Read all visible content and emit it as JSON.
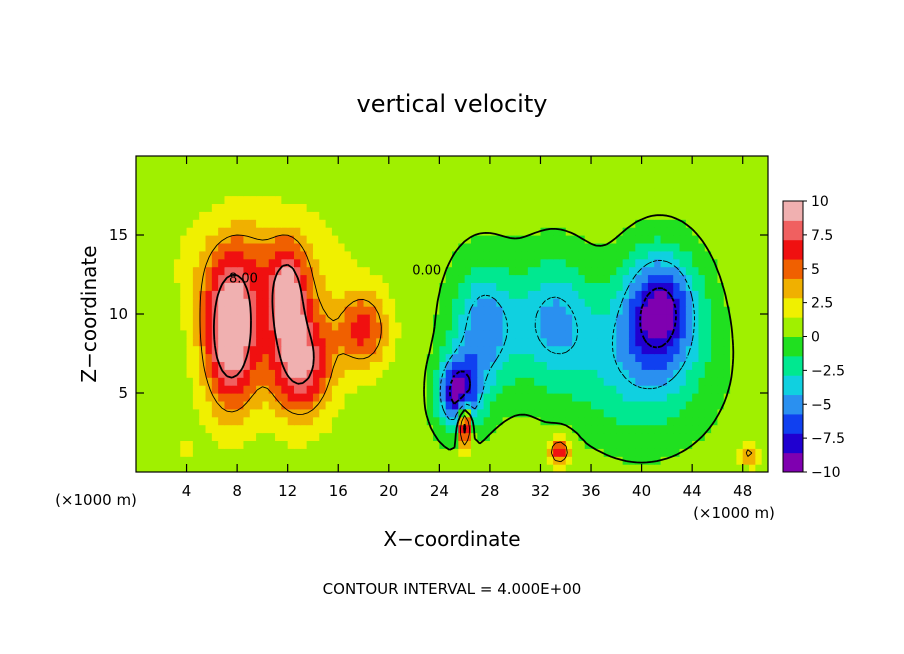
{
  "chart_data": {
    "type": "heatmap",
    "title": "vertical velocity",
    "xlabel": "X−coordinate",
    "ylabel": "Z−coordinate",
    "x_unit": "(×1000 m)",
    "y_unit": "(×1000 m)",
    "footer": "CONTOUR INTERVAL = 4.000E+00",
    "xlim": [
      0,
      50
    ],
    "ylim": [
      0,
      20
    ],
    "x_ticks": [
      4,
      8,
      12,
      16,
      20,
      24,
      28,
      32,
      36,
      40,
      44,
      48
    ],
    "x_tick_labels": [
      "4",
      "8",
      "12",
      "16",
      "20",
      "24",
      "28",
      "32",
      "36",
      "40",
      "44",
      "48"
    ],
    "y_ticks": [
      5,
      10,
      15
    ],
    "y_tick_labels": [
      "5",
      "10",
      "15"
    ],
    "contour_labels": [
      {
        "text": "8.00",
        "x": 8.5,
        "y": 12.0
      },
      {
        "text": "0.00",
        "x": 23.0,
        "y": 12.5
      }
    ],
    "colorbar": {
      "range": [
        -10,
        10
      ],
      "ticks": [
        10,
        7.5,
        5,
        2.5,
        0,
        -2.5,
        -5,
        -7.5,
        -10
      ],
      "tick_labels": [
        "10",
        "7.5",
        "5",
        "2.5",
        "0",
        "−2.5",
        "−5",
        "−7.5",
        "−10"
      ],
      "colors": [
        "#7f00b0",
        "#2000d0",
        "#1040f0",
        "#2a90f0",
        "#10d0e0",
        "#00e890",
        "#20e020",
        "#a0f000",
        "#f0f000",
        "#f0b000",
        "#f06000",
        "#f01010",
        "#f06060",
        "#f0b0b0"
      ]
    },
    "features": [
      {
        "x": 7.5,
        "y": 8.5,
        "value": 10,
        "spread_x": 2.2,
        "spread_y": 4.5
      },
      {
        "x": 13.0,
        "y": 7.0,
        "value": 8.5,
        "spread_x": 2.5,
        "spread_y": 3.5
      },
      {
        "x": 12.0,
        "y": 11.0,
        "value": 6.5,
        "spread_x": 1.4,
        "spread_y": 3.0
      },
      {
        "x": 18.0,
        "y": 9.0,
        "value": 5.5,
        "spread_x": 2.0,
        "spread_y": 2.5
      },
      {
        "x": 10.0,
        "y": 13.0,
        "value": 3.5,
        "spread_x": 5.5,
        "spread_y": 3.5
      },
      {
        "x": 25.5,
        "y": 5.0,
        "value": -9.5,
        "spread_x": 1.6,
        "spread_y": 2.2
      },
      {
        "x": 26.0,
        "y": 3.0,
        "value": 12,
        "spread_x": 0.5,
        "spread_y": 1.3
      },
      {
        "x": 27.5,
        "y": 9.0,
        "value": -6,
        "spread_x": 2.5,
        "spread_y": 4.0
      },
      {
        "x": 33.0,
        "y": 9.5,
        "value": -5,
        "spread_x": 3.0,
        "spread_y": 4.0
      },
      {
        "x": 41.5,
        "y": 10.5,
        "value": -8,
        "spread_x": 2.8,
        "spread_y": 3.5
      },
      {
        "x": 40.0,
        "y": 7.0,
        "value": -4.5,
        "spread_x": 5.0,
        "spread_y": 4.5
      },
      {
        "x": 33.5,
        "y": 1.3,
        "value": 6,
        "spread_x": 0.9,
        "spread_y": 0.9
      },
      {
        "x": 48.5,
        "y": 1.2,
        "value": 4,
        "spread_x": 0.7,
        "spread_y": 0.8
      },
      {
        "x": 4.0,
        "y": 1.5,
        "value": 3,
        "spread_x": 0.4,
        "spread_y": 0.5
      }
    ]
  }
}
